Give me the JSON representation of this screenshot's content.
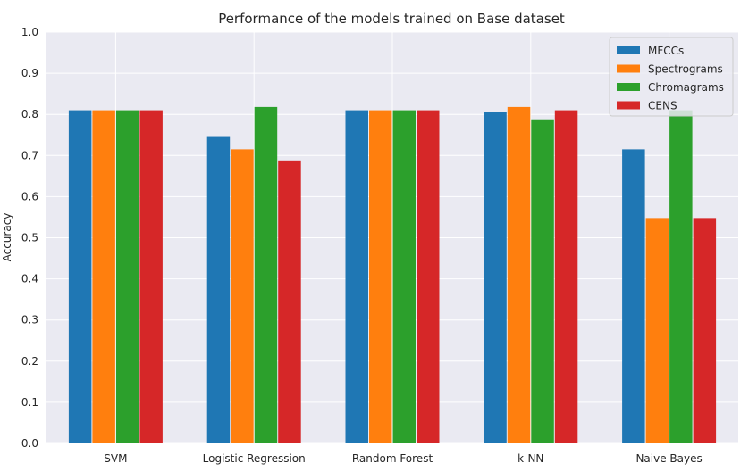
{
  "chart_data": {
    "type": "bar",
    "title": "Performance of the models trained on Base dataset",
    "xlabel": "",
    "ylabel": "Accuracy",
    "ylim": [
      0,
      1.0
    ],
    "yticks": [
      "0.0",
      "0.1",
      "0.2",
      "0.3",
      "0.4",
      "0.5",
      "0.6",
      "0.7",
      "0.8",
      "0.9",
      "1.0"
    ],
    "grid": true,
    "legend_position": "top-right",
    "categories": [
      "SVM",
      "Logistic Regression",
      "Random Forest",
      "k-NN",
      "Naive Bayes"
    ],
    "series": [
      {
        "name": "MFCCs",
        "color": "#1f77b4",
        "values": [
          0.81,
          0.745,
          0.81,
          0.805,
          0.715
        ]
      },
      {
        "name": "Spectrograms",
        "color": "#ff7f0e",
        "values": [
          0.81,
          0.715,
          0.81,
          0.818,
          0.548
        ]
      },
      {
        "name": "Chromagrams",
        "color": "#2ca02c",
        "values": [
          0.81,
          0.818,
          0.81,
          0.788,
          0.81
        ]
      },
      {
        "name": "CENS",
        "color": "#d62728",
        "values": [
          0.81,
          0.688,
          0.81,
          0.81,
          0.548
        ]
      }
    ]
  }
}
